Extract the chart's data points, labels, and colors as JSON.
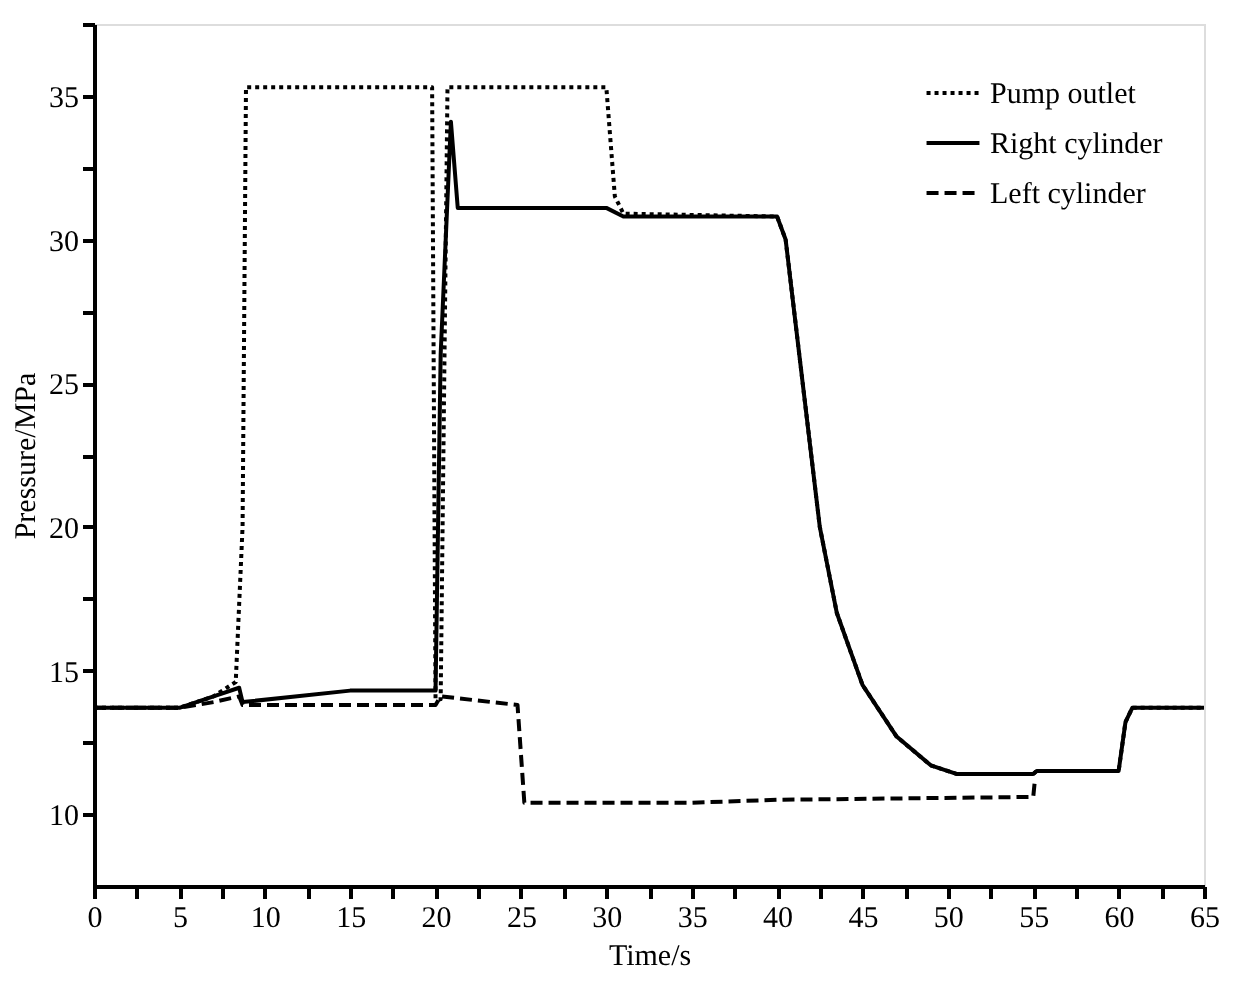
{
  "chart_data": {
    "type": "line",
    "xlabel": "Time/s",
    "ylabel": "Pressure/MPa",
    "xlim": [
      0,
      65
    ],
    "ylim": [
      7.5,
      37.5
    ],
    "xticks": [
      0,
      {
        "value": 2.5,
        "label": null
      },
      5,
      {
        "value": 7.5,
        "label": null
      },
      10,
      {
        "value": 12.5,
        "label": null
      },
      15,
      {
        "value": 17.5,
        "label": null
      },
      20,
      {
        "value": 22.5,
        "label": null
      },
      25,
      {
        "value": 27.5,
        "label": null
      },
      30,
      {
        "value": 32.5,
        "label": null
      },
      35,
      {
        "value": 37.5,
        "label": null
      },
      40,
      {
        "value": 42.5,
        "label": null
      },
      45,
      {
        "value": 47.5,
        "label": null
      },
      50,
      {
        "value": 52.5,
        "label": null
      },
      55,
      {
        "value": 57.5,
        "label": null
      },
      60,
      {
        "value": 62.5,
        "label": null
      },
      65
    ],
    "yticks": [
      10,
      {
        "value": 12.5,
        "label": null
      },
      15,
      {
        "value": 17.5,
        "label": null
      },
      20,
      {
        "value": 22.5,
        "label": null
      },
      25,
      {
        "value": 27.5,
        "label": null
      },
      30,
      {
        "value": 32.5,
        "label": null
      },
      35,
      {
        "value": 37.5,
        "label": null
      }
    ],
    "grid": false,
    "legend": "top right",
    "marker": "none",
    "series": [
      {
        "name": "Pump outlet",
        "color": "#000000",
        "line_style": "dotted",
        "x": [
          0,
          5,
          7,
          8.3,
          8.7,
          8.9,
          19.8,
          20,
          20.3,
          20.7,
          30,
          30.5,
          31,
          40,
          40.5,
          41.5,
          42.5,
          43.5,
          45,
          47,
          49,
          50.5,
          55,
          55.2,
          60,
          60.4,
          60.8,
          65
        ],
        "values": [
          13.7,
          13.7,
          14.1,
          14.6,
          20,
          35.3,
          35.3,
          14,
          14,
          35.3,
          35.3,
          31.5,
          30.9,
          30.8,
          30,
          25,
          20,
          17,
          14.5,
          12.7,
          11.7,
          11.4,
          11.4,
          11.5,
          11.5,
          13.2,
          13.7,
          13.7
        ]
      },
      {
        "name": "Right cylinder",
        "color": "#000000",
        "line_style": "solid",
        "x": [
          0,
          5,
          7,
          8.5,
          8.7,
          15,
          20,
          20.3,
          20.9,
          21.3,
          30,
          31,
          40,
          40.5,
          41.5,
          42.5,
          43.5,
          45,
          47,
          49,
          50.5,
          55,
          55.2,
          60,
          60.4,
          60.8,
          65
        ],
        "values": [
          13.7,
          13.7,
          14.1,
          14.4,
          13.9,
          14.3,
          14.3,
          26,
          34.1,
          31.1,
          31.1,
          30.8,
          30.8,
          30,
          25,
          20,
          17,
          14.5,
          12.7,
          11.7,
          11.4,
          11.4,
          11.5,
          11.5,
          13.2,
          13.7,
          13.7
        ]
      },
      {
        "name": "Left cylinder",
        "color": "#000000",
        "line_style": "dashed",
        "x": [
          0,
          5,
          7,
          8.5,
          8.7,
          20,
          20.3,
          24.8,
          25.2,
          35,
          40,
          55,
          55.1
        ],
        "values": [
          13.7,
          13.7,
          13.9,
          14.1,
          13.8,
          13.8,
          14.1,
          13.8,
          10.4,
          10.4,
          10.5,
          10.6,
          11.2
        ]
      }
    ]
  }
}
